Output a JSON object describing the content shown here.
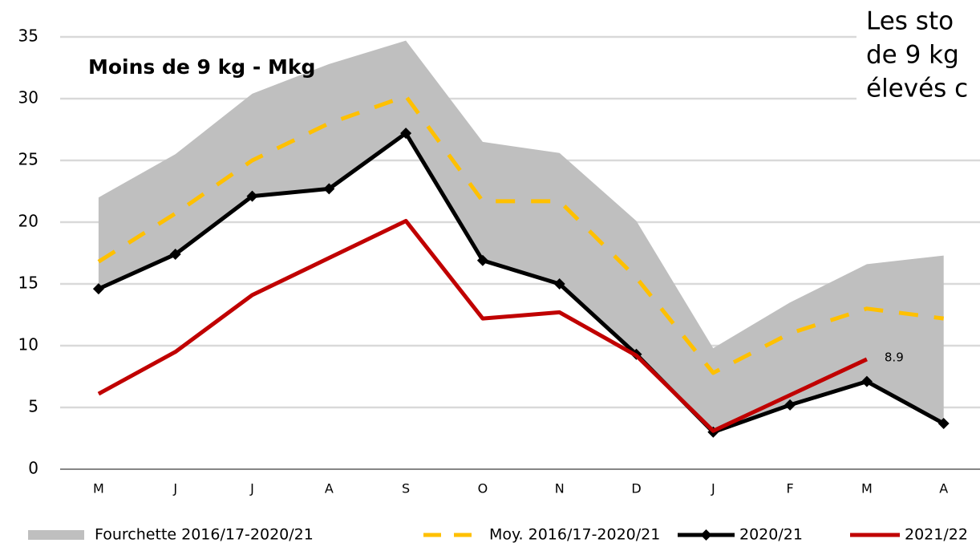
{
  "chart_data": {
    "type": "line",
    "title": "Moins de 9 kg - Mkg",
    "annotation_lines": [
      "Les sto",
      "de 9 kg",
      "élevés c"
    ],
    "categories": [
      "M",
      "J",
      "J",
      "A",
      "S",
      "O",
      "N",
      "D",
      "J",
      "F",
      "M",
      "A"
    ],
    "ylim": [
      0,
      35
    ],
    "yticks": [
      0,
      5,
      10,
      15,
      20,
      25,
      30,
      35
    ],
    "grid": true,
    "series": [
      {
        "name": "Fourchette 2016/17-2020/21",
        "style": "band",
        "color": "#bfbfbf",
        "upper": [
          22,
          25.5,
          30.4,
          32.8,
          34.7,
          26.5,
          25.6,
          20.1,
          9.8,
          13.5,
          16.6,
          17.3
        ],
        "lower": [
          14.6,
          17.4,
          22.1,
          22.7,
          27.2,
          16.9,
          15,
          9.3,
          3,
          5.2,
          7.1,
          3.7
        ]
      },
      {
        "name": "Moy. 2016/17-2020/21",
        "style": "dashed",
        "color": "#ffc000",
        "values": [
          16.8,
          20.7,
          25,
          28,
          30.2,
          21.7,
          21.7,
          15.5,
          7.8,
          11,
          13,
          12.2
        ]
      },
      {
        "name": "2020/21",
        "style": "markers",
        "color": "#000000",
        "values": [
          14.6,
          17.4,
          22.1,
          22.7,
          27.2,
          16.9,
          15,
          9.3,
          3,
          5.2,
          7.1,
          3.7
        ]
      },
      {
        "name": "2021/22",
        "style": "solid",
        "color": "#c00000",
        "values": [
          6.1,
          9.5,
          14.1,
          17.1,
          20.1,
          12.2,
          12.7,
          9.2,
          3.1,
          6,
          8.9,
          null
        ],
        "labeled_point": 10
      }
    ]
  }
}
